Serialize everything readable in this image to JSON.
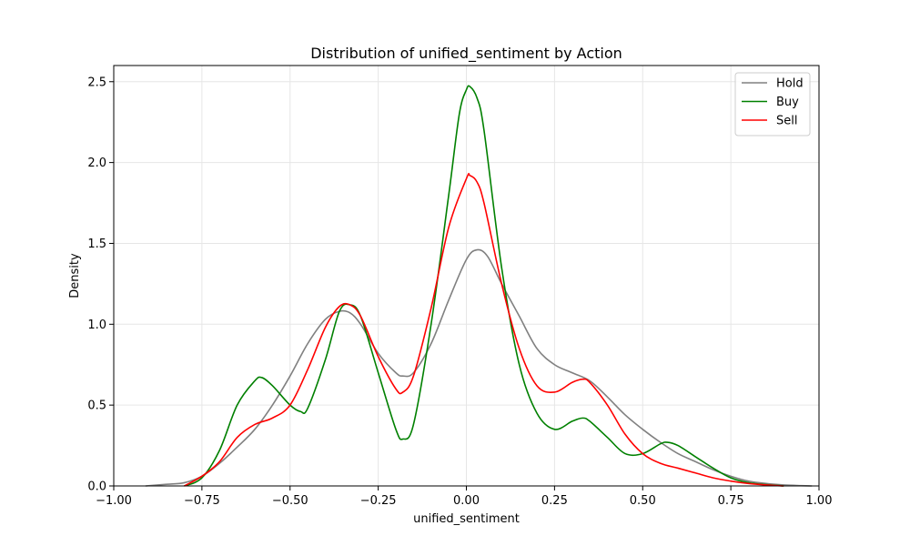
{
  "chart_data": {
    "type": "line",
    "title": "Distribution of unified_sentiment by Action",
    "xlabel": "unified_sentiment",
    "ylabel": "Density",
    "xlim": [
      -1.0,
      1.0
    ],
    "ylim": [
      0,
      2.6
    ],
    "xticks": [
      -1.0,
      -0.75,
      -0.5,
      -0.25,
      0.0,
      0.25,
      0.5,
      0.75,
      1.0
    ],
    "xtick_labels": [
      "−1.00",
      "−0.75",
      "−0.50",
      "−0.25",
      "0.00",
      "0.25",
      "0.50",
      "0.75",
      "1.00"
    ],
    "yticks": [
      0.0,
      0.5,
      1.0,
      1.5,
      2.0,
      2.5
    ],
    "ytick_labels": [
      "0.0",
      "0.5",
      "1.0",
      "1.5",
      "2.0",
      "2.5"
    ],
    "grid": true,
    "legend_position": "top-right",
    "series": [
      {
        "name": "Hold",
        "color": "#808080",
        "x": [
          -0.91,
          -0.85,
          -0.8,
          -0.75,
          -0.7,
          -0.65,
          -0.6,
          -0.55,
          -0.5,
          -0.45,
          -0.4,
          -0.36,
          -0.33,
          -0.3,
          -0.25,
          -0.2,
          -0.18,
          -0.15,
          -0.1,
          -0.05,
          0.0,
          0.03,
          0.06,
          0.1,
          0.15,
          0.2,
          0.25,
          0.3,
          0.35,
          0.4,
          0.45,
          0.5,
          0.55,
          0.6,
          0.65,
          0.7,
          0.75,
          0.8,
          0.85,
          0.9,
          0.95,
          0.98
        ],
        "y": [
          0.0,
          0.01,
          0.02,
          0.06,
          0.14,
          0.24,
          0.35,
          0.5,
          0.68,
          0.88,
          1.03,
          1.08,
          1.07,
          1.0,
          0.82,
          0.7,
          0.68,
          0.7,
          0.88,
          1.15,
          1.4,
          1.46,
          1.42,
          1.25,
          1.05,
          0.85,
          0.75,
          0.7,
          0.65,
          0.55,
          0.44,
          0.35,
          0.27,
          0.2,
          0.15,
          0.1,
          0.06,
          0.03,
          0.015,
          0.006,
          0.002,
          0.0
        ]
      },
      {
        "name": "Buy",
        "color": "#008000",
        "x": [
          -0.8,
          -0.75,
          -0.7,
          -0.65,
          -0.6,
          -0.58,
          -0.55,
          -0.5,
          -0.47,
          -0.45,
          -0.4,
          -0.36,
          -0.33,
          -0.3,
          -0.25,
          -0.2,
          -0.18,
          -0.15,
          -0.1,
          -0.05,
          -0.02,
          0.0,
          0.01,
          0.03,
          0.05,
          0.1,
          0.15,
          0.2,
          0.25,
          0.3,
          0.33,
          0.35,
          0.4,
          0.45,
          0.5,
          0.55,
          0.57,
          0.6,
          0.65,
          0.7,
          0.75,
          0.8,
          0.85,
          0.9
        ],
        "y": [
          0.0,
          0.05,
          0.22,
          0.5,
          0.65,
          0.67,
          0.62,
          0.5,
          0.46,
          0.48,
          0.78,
          1.08,
          1.12,
          1.05,
          0.7,
          0.35,
          0.29,
          0.38,
          1.0,
          1.8,
          2.3,
          2.45,
          2.47,
          2.4,
          2.2,
          1.35,
          0.75,
          0.45,
          0.35,
          0.4,
          0.42,
          0.4,
          0.3,
          0.2,
          0.2,
          0.26,
          0.27,
          0.25,
          0.18,
          0.11,
          0.05,
          0.02,
          0.008,
          0.0
        ]
      },
      {
        "name": "Sell",
        "color": "#ff0000",
        "x": [
          -0.8,
          -0.75,
          -0.7,
          -0.65,
          -0.6,
          -0.55,
          -0.5,
          -0.45,
          -0.4,
          -0.36,
          -0.33,
          -0.3,
          -0.25,
          -0.2,
          -0.18,
          -0.15,
          -0.1,
          -0.05,
          0.0,
          0.01,
          0.03,
          0.05,
          0.1,
          0.15,
          0.2,
          0.25,
          0.3,
          0.33,
          0.35,
          0.4,
          0.45,
          0.5,
          0.55,
          0.6,
          0.65,
          0.7,
          0.75,
          0.8,
          0.85,
          0.9
        ],
        "y": [
          0.0,
          0.06,
          0.15,
          0.3,
          0.38,
          0.42,
          0.5,
          0.72,
          0.98,
          1.11,
          1.12,
          1.05,
          0.8,
          0.6,
          0.58,
          0.68,
          1.1,
          1.6,
          1.9,
          1.92,
          1.88,
          1.75,
          1.25,
          0.85,
          0.62,
          0.58,
          0.64,
          0.66,
          0.64,
          0.5,
          0.32,
          0.2,
          0.14,
          0.11,
          0.08,
          0.05,
          0.03,
          0.015,
          0.006,
          0.0
        ]
      }
    ]
  }
}
